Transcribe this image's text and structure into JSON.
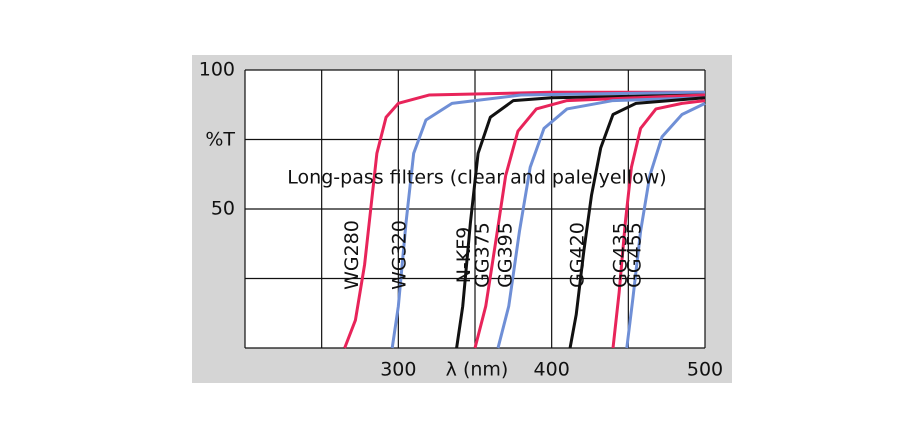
{
  "chart_data": {
    "type": "line",
    "annotation": "Long-pass filters (clear and pale yellow)",
    "x_label": "λ (nm)",
    "y_label": "%T",
    "xlim": [
      200,
      500
    ],
    "ylim": [
      0,
      100
    ],
    "xticks": [
      300,
      400,
      500
    ],
    "yticks": [
      50,
      100
    ],
    "x_grid": [
      200,
      250,
      350,
      450
    ],
    "y_grid": [
      0,
      25,
      75
    ],
    "series": [
      {
        "name": "WG280",
        "color": "#e8245a",
        "x": [
          265,
          272,
          278,
          282,
          286,
          292,
          300,
          320,
          400,
          500
        ],
        "values": [
          0,
          10,
          30,
          50,
          70,
          83,
          88,
          91,
          92,
          92
        ]
      },
      {
        "name": "WG320",
        "color": "#6f8fd6",
        "x": [
          296,
          300,
          305,
          310,
          318,
          335,
          380,
          500
        ],
        "values": [
          0,
          15,
          45,
          70,
          82,
          88,
          91,
          92
        ]
      },
      {
        "name": "N-KF9",
        "color": "#111111",
        "x": [
          338,
          342,
          347,
          352,
          360,
          375,
          400,
          500
        ],
        "values": [
          0,
          15,
          45,
          70,
          83,
          89,
          90,
          91
        ]
      },
      {
        "name": "GG375",
        "color": "#e8245a",
        "x": [
          350,
          357,
          364,
          370,
          378,
          390,
          410,
          500
        ],
        "values": [
          0,
          15,
          40,
          62,
          78,
          86,
          89,
          91
        ]
      },
      {
        "name": "GG395",
        "color": "#6f8fd6",
        "x": [
          365,
          372,
          379,
          386,
          395,
          410,
          440,
          500
        ],
        "values": [
          0,
          15,
          42,
          65,
          79,
          86,
          89,
          90
        ]
      },
      {
        "name": "GG420",
        "color": "#111111",
        "x": [
          412,
          416,
          421,
          426,
          432,
          440,
          455,
          500
        ],
        "values": [
          0,
          12,
          35,
          55,
          72,
          84,
          88,
          90
        ]
      },
      {
        "name": "GG435",
        "color": "#e8245a",
        "x": [
          440,
          444,
          448,
          452,
          458,
          468,
          485,
          500
        ],
        "values": [
          0,
          20,
          45,
          65,
          79,
          86,
          88,
          89
        ]
      },
      {
        "name": "GG455",
        "color": "#6f8fd6",
        "x": [
          449,
          453,
          458,
          464,
          472,
          485,
          500
        ],
        "values": [
          0,
          18,
          42,
          62,
          76,
          84,
          88
        ]
      }
    ]
  }
}
